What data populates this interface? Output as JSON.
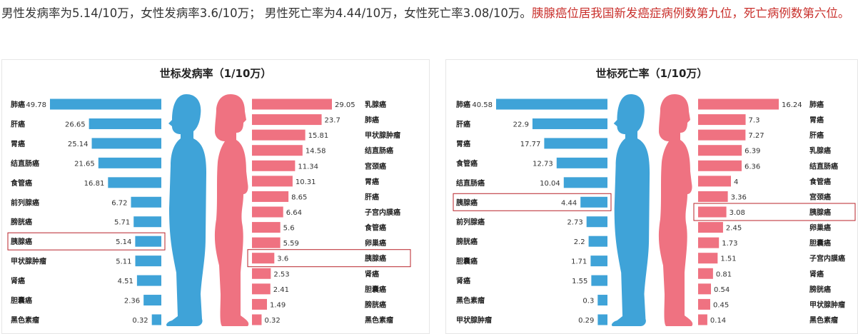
{
  "intro": {
    "text": "男性发病率为5.14/10万，女性发病率3.6/10万； 男性死亡率为4.44/10万，女性死亡率3.08/10万。",
    "highlight": "胰腺癌位居我国新发癌症病例数第九位，死亡病例数第六位。",
    "highlight_color": "#c9302c"
  },
  "colors": {
    "male": "#3fa3d8",
    "female": "#ef7281",
    "highlight_box": "#b8232a"
  },
  "chart_data": [
    {
      "type": "bar",
      "title": "世标发病率（1/10万）",
      "highlight": "胰腺癌",
      "series": [
        {
          "side": "male",
          "categories": [
            "肺癌",
            "肝癌",
            "胃癌",
            "结直肠癌",
            "食管癌",
            "前列腺癌",
            "膀胱癌",
            "胰腺癌",
            "甲状腺肿瘤",
            "肾癌",
            "胆囊癌",
            "黑色素瘤"
          ],
          "values": [
            49.78,
            26.65,
            25.14,
            21.65,
            16.81,
            6.72,
            5.71,
            5.14,
            5.11,
            4.51,
            2.36,
            0.32
          ]
        },
        {
          "side": "female",
          "categories": [
            "乳腺癌",
            "肺癌",
            "甲状腺肿瘤",
            "结直肠癌",
            "宫颈癌",
            "胃癌",
            "肝癌",
            "子宫内膜癌",
            "食管癌",
            "卵巢癌",
            "胰腺癌",
            "肾癌",
            "胆囊癌",
            "膀胱癌",
            "黑色素瘤"
          ],
          "values": [
            29.05,
            23.7,
            15.81,
            14.58,
            11.34,
            10.31,
            8.65,
            6.64,
            5.6,
            5.59,
            3.6,
            2.53,
            2.41,
            1.49,
            0.32
          ]
        }
      ]
    },
    {
      "type": "bar",
      "title": "世标死亡率（1/10万）",
      "highlight": "胰腺癌",
      "series": [
        {
          "side": "male",
          "categories": [
            "肺癌",
            "肝癌",
            "胃癌",
            "食管癌",
            "结直肠癌",
            "胰腺癌",
            "前列腺癌",
            "膀胱癌",
            "胆囊癌",
            "肾癌",
            "黑色素瘤",
            "甲状腺肿瘤"
          ],
          "values": [
            40.58,
            22.9,
            17.77,
            12.73,
            10.04,
            4.44,
            2.73,
            2.2,
            1.71,
            1.55,
            0.3,
            0.29
          ]
        },
        {
          "side": "female",
          "categories": [
            "肺癌",
            "胃癌",
            "肝癌",
            "乳腺癌",
            "结直肠癌",
            "食管癌",
            "宫颈癌",
            "胰腺癌",
            "卵巢癌",
            "胆囊癌",
            "子宫内膜癌",
            "肾癌",
            "膀胱癌",
            "甲状腺肿瘤",
            "黑色素瘤"
          ],
          "values": [
            16.24,
            7.3,
            7.27,
            6.39,
            6.36,
            4,
            3.36,
            3.08,
            2.45,
            1.73,
            1.51,
            0.81,
            0.54,
            0.45,
            0.14
          ]
        }
      ]
    }
  ]
}
